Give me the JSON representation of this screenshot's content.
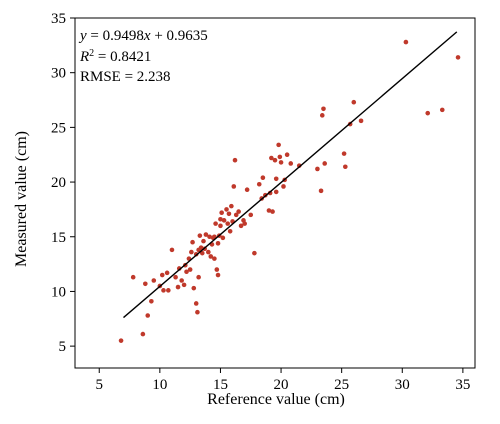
{
  "chart_data": {
    "type": "scatter",
    "title": "",
    "xlabel": "Reference value (cm)",
    "ylabel": "Measured value (cm)",
    "xlim": [
      3,
      36
    ],
    "ylim": [
      3,
      35
    ],
    "xticks": [
      5,
      10,
      15,
      20,
      25,
      30,
      35
    ],
    "yticks": [
      5,
      10,
      15,
      20,
      25,
      30,
      35
    ],
    "grid": false,
    "legend": "none",
    "point_color": "#c0392b",
    "line_color": "#000000",
    "annotations": {
      "equation": {
        "y": "y",
        "eq": " = 0.9498",
        "x": "x",
        "rest": " + 0.9635"
      },
      "r2": {
        "r": "R",
        "sup": "2",
        "rest": " = 0.8421"
      },
      "rmse": "RMSE = 2.238"
    },
    "regression": {
      "slope": 0.9498,
      "intercept": 0.9635,
      "x_range": [
        7,
        34.5
      ]
    },
    "points": [
      [
        6.8,
        5.5
      ],
      [
        7.8,
        11.3
      ],
      [
        8.6,
        6.1
      ],
      [
        8.8,
        10.7
      ],
      [
        9.0,
        7.8
      ],
      [
        9.3,
        9.1
      ],
      [
        9.5,
        11.0
      ],
      [
        10.0,
        10.5
      ],
      [
        10.2,
        11.5
      ],
      [
        10.3,
        10.1
      ],
      [
        10.6,
        11.7
      ],
      [
        10.7,
        10.1
      ],
      [
        11.0,
        13.8
      ],
      [
        11.3,
        11.3
      ],
      [
        11.5,
        10.4
      ],
      [
        11.6,
        12.1
      ],
      [
        11.8,
        11.0
      ],
      [
        12.0,
        10.6
      ],
      [
        12.1,
        12.4
      ],
      [
        12.2,
        11.8
      ],
      [
        12.4,
        13.0
      ],
      [
        12.5,
        12.0
      ],
      [
        12.6,
        13.6
      ],
      [
        12.7,
        14.5
      ],
      [
        12.8,
        10.3
      ],
      [
        13.0,
        13.4
      ],
      [
        13.0,
        8.9
      ],
      [
        13.1,
        8.1
      ],
      [
        13.2,
        11.3
      ],
      [
        13.2,
        13.8
      ],
      [
        13.3,
        15.1
      ],
      [
        13.4,
        14.0
      ],
      [
        13.5,
        13.5
      ],
      [
        13.6,
        14.6
      ],
      [
        13.7,
        13.9
      ],
      [
        13.8,
        15.2
      ],
      [
        14.0,
        13.6
      ],
      [
        14.1,
        15.0
      ],
      [
        14.2,
        13.2
      ],
      [
        14.3,
        14.3
      ],
      [
        14.4,
        14.9
      ],
      [
        14.5,
        13.0
      ],
      [
        14.5,
        15.0
      ],
      [
        14.6,
        16.2
      ],
      [
        14.7,
        12.0
      ],
      [
        14.8,
        11.5
      ],
      [
        14.8,
        14.4
      ],
      [
        14.9,
        15.1
      ],
      [
        15.0,
        16.6
      ],
      [
        15.0,
        16.0
      ],
      [
        15.1,
        17.2
      ],
      [
        15.2,
        14.9
      ],
      [
        15.3,
        16.5
      ],
      [
        15.5,
        17.5
      ],
      [
        15.6,
        16.2
      ],
      [
        15.7,
        17.1
      ],
      [
        15.8,
        15.5
      ],
      [
        15.9,
        17.8
      ],
      [
        16.0,
        16.4
      ],
      [
        16.1,
        19.6
      ],
      [
        16.2,
        22.0
      ],
      [
        16.3,
        17.0
      ],
      [
        16.5,
        17.3
      ],
      [
        16.7,
        16.0
      ],
      [
        16.9,
        16.5
      ],
      [
        17.0,
        16.2
      ],
      [
        17.2,
        19.3
      ],
      [
        17.5,
        17.0
      ],
      [
        17.8,
        13.5
      ],
      [
        18.2,
        19.8
      ],
      [
        18.4,
        18.5
      ],
      [
        18.5,
        20.4
      ],
      [
        18.7,
        18.8
      ],
      [
        19.0,
        17.4
      ],
      [
        19.1,
        19.0
      ],
      [
        19.2,
        22.2
      ],
      [
        19.3,
        17.3
      ],
      [
        19.5,
        22.0
      ],
      [
        19.6,
        20.3
      ],
      [
        19.6,
        19.1
      ],
      [
        19.8,
        23.4
      ],
      [
        19.9,
        22.3
      ],
      [
        20.0,
        21.8
      ],
      [
        20.2,
        19.6
      ],
      [
        20.3,
        20.2
      ],
      [
        20.5,
        22.5
      ],
      [
        20.8,
        21.7
      ],
      [
        21.5,
        21.5
      ],
      [
        23.0,
        21.2
      ],
      [
        23.3,
        19.2
      ],
      [
        23.4,
        26.1
      ],
      [
        23.5,
        26.7
      ],
      [
        23.6,
        21.7
      ],
      [
        25.2,
        22.6
      ],
      [
        25.3,
        21.4
      ],
      [
        25.7,
        25.3
      ],
      [
        26.0,
        27.3
      ],
      [
        26.6,
        25.6
      ],
      [
        30.3,
        32.8
      ],
      [
        32.1,
        26.3
      ],
      [
        33.3,
        26.6
      ],
      [
        34.6,
        31.4
      ]
    ]
  }
}
